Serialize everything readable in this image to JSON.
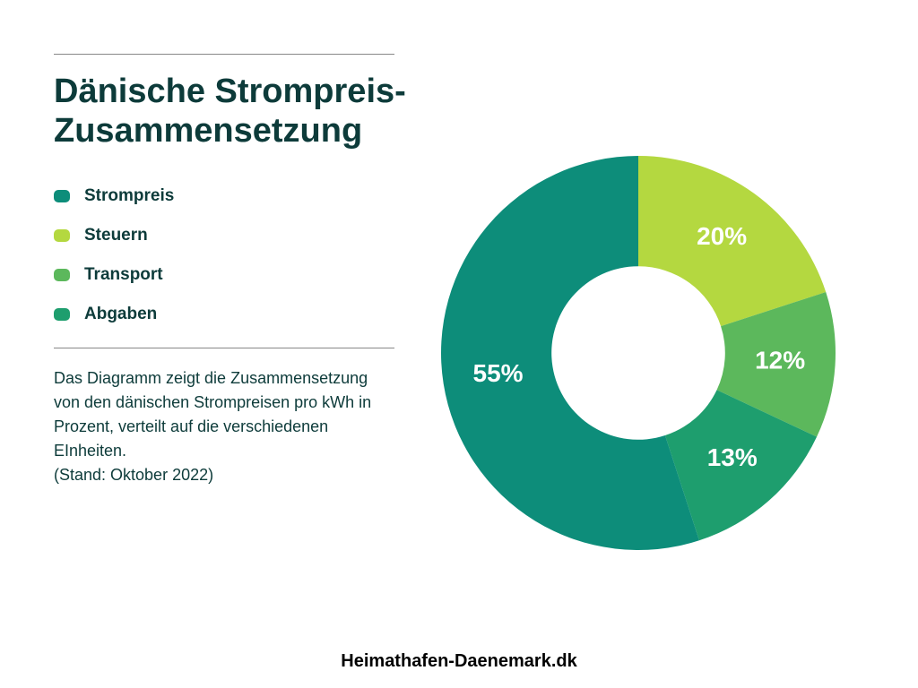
{
  "title_color": "#0d3b3a",
  "text_color": "#0d3b3a",
  "title": "Dänische Strompreis-Zusammensetzung",
  "legend": [
    {
      "label": "Strompreis",
      "color": "#0d8d7a"
    },
    {
      "label": "Steuern",
      "color": "#b4d840"
    },
    {
      "label": "Transport",
      "color": "#5cb85c"
    },
    {
      "label": "Abgaben",
      "color": "#1e9e6e"
    }
  ],
  "description": "Das Diagramm zeigt die Zusammensetzung von den dänischen Strompreisen pro kWh in Prozent, verteilt auf die verschiedenen EInheiten.",
  "description_note": "(Stand: Oktober 2022)",
  "footer": "Heimathafen-Daenemark.dk",
  "chart": {
    "type": "donut",
    "background_color": "#ffffff",
    "inner_radius_ratio": 0.44,
    "outer_radius": 220,
    "start_angle_deg": -90,
    "direction": "clockwise",
    "label_fontsize": 28,
    "slices": [
      {
        "label": "20%",
        "value": 20,
        "color": "#b4d840",
        "label_color": "#ffffff"
      },
      {
        "label": "12%",
        "value": 12,
        "color": "#5cb85c",
        "label_color": "#ffffff"
      },
      {
        "label": "13%",
        "value": 13,
        "color": "#1e9e6e",
        "label_color": "#ffffff"
      },
      {
        "label": "55%",
        "value": 55,
        "color": "#0d8d7a",
        "label_color": "#ffffff"
      }
    ]
  }
}
